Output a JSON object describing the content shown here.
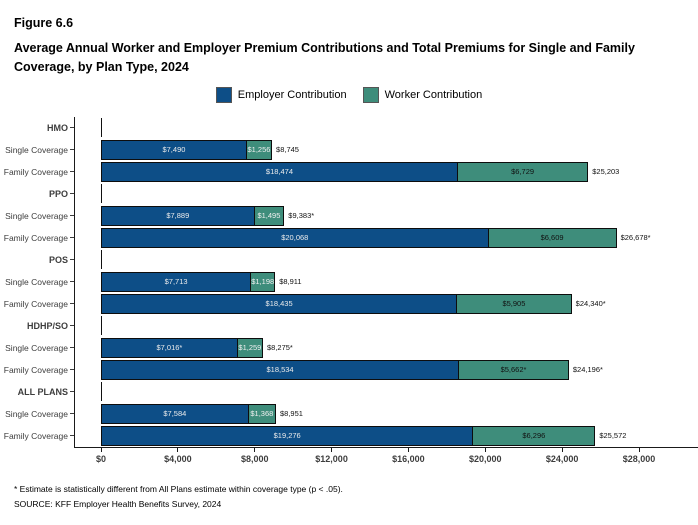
{
  "figure_label": "Figure 6.6",
  "title": "Average Annual Worker and Employer Premium Contributions and Total Premiums for Single and Family Coverage, by Plan Type, 2024",
  "legend": [
    {
      "label": "Employer Contribution",
      "color": "#0d4e87"
    },
    {
      "label": "Worker Contribution",
      "color": "#3e8d7b"
    }
  ],
  "footnote": "* Estimate is statistically different from All Plans estimate within coverage type (p < .05).",
  "source": "SOURCE: KFF Employer Health Benefits Survey, 2024",
  "chart_data": {
    "type": "bar",
    "orientation": "horizontal",
    "stacked": true,
    "title": "Average Annual Worker and Employer Premium Contributions and Total Premiums for Single and Family Coverage, by Plan Type, 2024",
    "xlabel": "",
    "ylabel": "",
    "xlim": [
      0,
      28000
    ],
    "x_tick_values": [
      0,
      4000,
      8000,
      12000,
      16000,
      20000,
      24000,
      28000
    ],
    "x_tick_labels": [
      "$0",
      "$4,000",
      "$8,000",
      "$12,000",
      "$16,000",
      "$20,000",
      "$24,000",
      "$28,000"
    ],
    "series_names": [
      "Employer Contribution",
      "Worker Contribution"
    ],
    "legend_position": "top",
    "grid": false,
    "groups": [
      {
        "plan": "HMO",
        "rows": [
          {
            "label": "Single Coverage",
            "employer": 7490,
            "employer_label": "$7,490",
            "worker": 1256,
            "worker_label": "$1,256",
            "total": 8745,
            "total_label": "$8,745"
          },
          {
            "label": "Family Coverage",
            "employer": 18474,
            "employer_label": "$18,474",
            "worker": 6729,
            "worker_label": "$6,729",
            "total": 25203,
            "total_label": "$25,203"
          }
        ]
      },
      {
        "plan": "PPO",
        "rows": [
          {
            "label": "Single Coverage",
            "employer": 7889,
            "employer_label": "$7,889",
            "worker": 1495,
            "worker_label": "$1,495",
            "total": 9383,
            "total_label": "$9,383*"
          },
          {
            "label": "Family Coverage",
            "employer": 20068,
            "employer_label": "$20,068",
            "worker": 6609,
            "worker_label": "$6,609",
            "total": 26678,
            "total_label": "$26,678*"
          }
        ]
      },
      {
        "plan": "POS",
        "rows": [
          {
            "label": "Single Coverage",
            "employer": 7713,
            "employer_label": "$7,713",
            "worker": 1198,
            "worker_label": "$1,198",
            "total": 8911,
            "total_label": "$8,911"
          },
          {
            "label": "Family Coverage",
            "employer": 18435,
            "employer_label": "$18,435",
            "worker": 5905,
            "worker_label": "$5,905",
            "total": 24340,
            "total_label": "$24,340*"
          }
        ]
      },
      {
        "plan": "HDHP/SO",
        "rows": [
          {
            "label": "Single Coverage",
            "employer": 7016,
            "employer_label": "$7,016*",
            "worker": 1259,
            "worker_label": "$1,259",
            "total": 8275,
            "total_label": "$8,275*"
          },
          {
            "label": "Family Coverage",
            "employer": 18534,
            "employer_label": "$18,534",
            "worker": 5662,
            "worker_label": "$5,662*",
            "total": 24196,
            "total_label": "$24,196*"
          }
        ]
      },
      {
        "plan": "ALL PLANS",
        "rows": [
          {
            "label": "Single Coverage",
            "employer": 7584,
            "employer_label": "$7,584",
            "worker": 1368,
            "worker_label": "$1,368",
            "total": 8951,
            "total_label": "$8,951"
          },
          {
            "label": "Family Coverage",
            "employer": 19276,
            "employer_label": "$19,276",
            "worker": 6296,
            "worker_label": "$6,296",
            "total": 25572,
            "total_label": "$25,572"
          }
        ]
      }
    ]
  }
}
